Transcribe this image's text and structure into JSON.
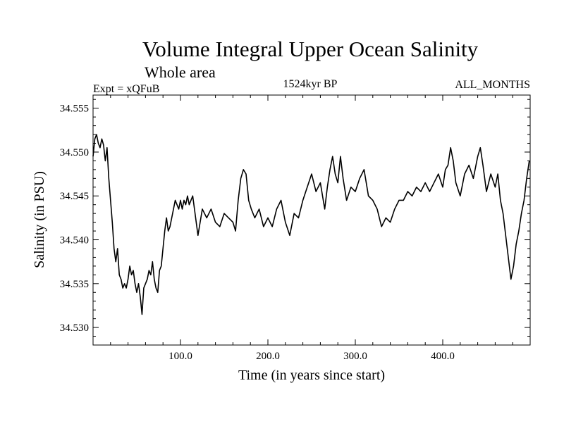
{
  "chart_data": {
    "type": "line",
    "title": "Volume Integral Upper Ocean Salinity",
    "subtitle": "Whole area",
    "annotations": {
      "left": "Expt = xQFuB",
      "center": "1524kyr BP",
      "right": "ALL_MONTHS"
    },
    "xlabel": "Time (in years since start)",
    "ylabel": "Salinity (in PSU)",
    "xlim": [
      0,
      500
    ],
    "ylim": [
      34.528,
      34.5565
    ],
    "xticks": [
      100,
      200,
      300,
      400
    ],
    "xtick_labels": [
      "100.0",
      "200.0",
      "300.0",
      "400.0"
    ],
    "yticks": [
      34.53,
      34.535,
      34.54,
      34.545,
      34.55,
      34.555
    ],
    "ytick_labels": [
      "34.530",
      "34.535",
      "34.540",
      "34.545",
      "34.550",
      "34.555"
    ],
    "grid": false,
    "line_color": "#000000",
    "series": [
      {
        "name": "salinity",
        "x": [
          0,
          2,
          4,
          6,
          8,
          10,
          12,
          14,
          16,
          18,
          20,
          22,
          24,
          26,
          28,
          30,
          32,
          34,
          36,
          38,
          40,
          42,
          44,
          46,
          48,
          50,
          52,
          54,
          56,
          58,
          60,
          62,
          64,
          66,
          68,
          70,
          72,
          74,
          76,
          78,
          80,
          82,
          84,
          86,
          88,
          90,
          92,
          94,
          96,
          98,
          100,
          102,
          104,
          106,
          108,
          110,
          112,
          114,
          116,
          118,
          120,
          125,
          130,
          135,
          140,
          145,
          150,
          155,
          160,
          163,
          166,
          169,
          172,
          175,
          178,
          181,
          185,
          190,
          195,
          200,
          205,
          210,
          215,
          220,
          225,
          230,
          235,
          240,
          245,
          250,
          255,
          260,
          265,
          268,
          271,
          274,
          277,
          280,
          283,
          286,
          290,
          295,
          300,
          305,
          310,
          315,
          320,
          325,
          330,
          335,
          340,
          345,
          350,
          355,
          360,
          365,
          370,
          375,
          380,
          385,
          390,
          395,
          400,
          403,
          406,
          409,
          412,
          415,
          420,
          425,
          430,
          435,
          440,
          443,
          446,
          450,
          455,
          460,
          463,
          466,
          469,
          472,
          475,
          478,
          481,
          484,
          487,
          490,
          493,
          496,
          499
        ],
        "values": [
          34.5495,
          34.5515,
          34.552,
          34.551,
          34.5505,
          34.5515,
          34.5508,
          34.549,
          34.5505,
          34.547,
          34.5445,
          34.542,
          34.539,
          34.5375,
          34.539,
          34.536,
          34.5355,
          34.5345,
          34.535,
          34.5345,
          34.5355,
          34.537,
          34.536,
          34.5365,
          34.535,
          34.534,
          34.535,
          34.5335,
          34.5315,
          34.5345,
          34.535,
          34.5355,
          34.5365,
          34.536,
          34.5375,
          34.5355,
          34.5345,
          34.534,
          34.5365,
          34.537,
          34.539,
          34.541,
          34.5425,
          34.541,
          34.5415,
          34.5425,
          34.5435,
          34.5445,
          34.544,
          34.5435,
          34.5445,
          34.5435,
          34.5445,
          34.544,
          34.545,
          34.544,
          34.5445,
          34.545,
          34.5435,
          34.542,
          34.5405,
          34.5435,
          34.5425,
          34.5435,
          34.542,
          34.5415,
          34.543,
          34.5425,
          34.542,
          34.541,
          34.5445,
          34.547,
          34.548,
          34.5475,
          34.5445,
          34.5435,
          34.5425,
          34.5435,
          34.5415,
          34.5425,
          34.5415,
          34.5435,
          34.5445,
          34.542,
          34.5405,
          34.543,
          34.5425,
          34.5445,
          34.546,
          34.5475,
          34.5455,
          34.5465,
          34.5435,
          34.546,
          34.548,
          34.5495,
          34.5475,
          34.5465,
          34.5495,
          34.547,
          34.5445,
          34.546,
          34.5455,
          34.547,
          34.548,
          34.545,
          34.5445,
          34.5435,
          34.5415,
          34.5425,
          34.542,
          34.5435,
          34.5445,
          34.5445,
          34.5455,
          34.545,
          34.546,
          34.5455,
          34.5465,
          34.5455,
          34.5465,
          34.5475,
          34.546,
          34.548,
          34.5485,
          34.5505,
          34.549,
          34.5465,
          34.545,
          34.5475,
          34.5485,
          34.547,
          34.5495,
          34.5505,
          34.5485,
          34.5455,
          34.5475,
          34.546,
          34.5475,
          34.5445,
          34.543,
          34.5405,
          34.538,
          34.5355,
          34.537,
          34.5395,
          34.541,
          34.543,
          34.5445,
          34.547,
          34.549
        ]
      }
    ]
  }
}
